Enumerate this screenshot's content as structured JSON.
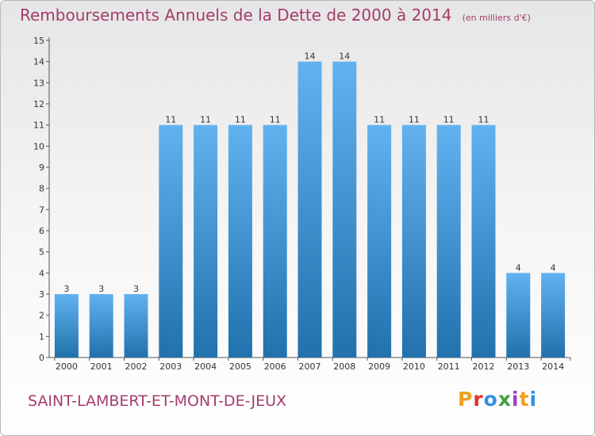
{
  "header": {
    "title": "Remboursements Annuels de la Dette de 2000 à 2014",
    "unit": "(en milliers d'€)"
  },
  "footer": {
    "commune": "SAINT-LAMBERT-ET-MONT-DE-JEUX",
    "logo_text": "Proxiti",
    "logo_colors": [
      "#f0a020",
      "#e03030",
      "#3090e0",
      "#40a040",
      "#a040c0",
      "#f0a020",
      "#3090e0"
    ]
  },
  "colors": {
    "title": "#a43c6c",
    "bar_light": "#62b2f0",
    "bar_dark": "#2171ad",
    "axis": "#555555"
  },
  "chart_data": {
    "type": "bar",
    "title": "Remboursements Annuels de la Dette de 2000 à 2014",
    "xlabel": "",
    "ylabel": "",
    "categories": [
      "2000",
      "2001",
      "2002",
      "2003",
      "2004",
      "2005",
      "2006",
      "2007",
      "2008",
      "2009",
      "2010",
      "2011",
      "2012",
      "2013",
      "2014"
    ],
    "values": [
      3,
      3,
      3,
      11,
      11,
      11,
      11,
      14,
      14,
      11,
      11,
      11,
      11,
      4,
      4
    ],
    "ylim": [
      0,
      15
    ],
    "yticks": [
      0,
      1,
      2,
      3,
      4,
      5,
      6,
      7,
      8,
      9,
      10,
      11,
      12,
      13,
      14,
      15
    ],
    "grid": false,
    "data_labels": true
  }
}
